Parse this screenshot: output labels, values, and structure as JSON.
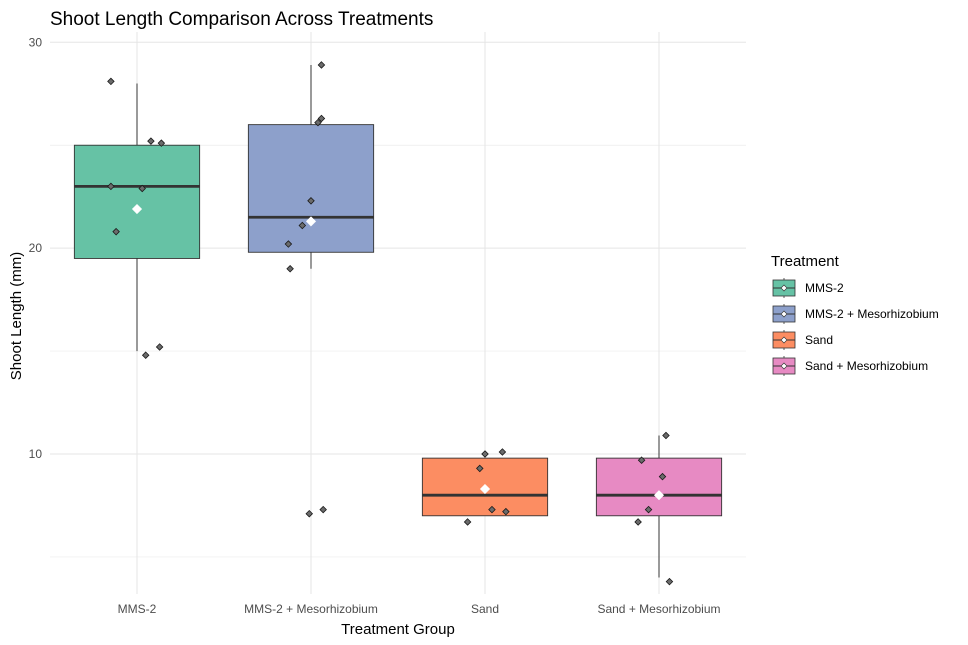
{
  "chart_data": {
    "type": "boxplot",
    "title": "Shoot Length Comparison Across Treatments",
    "xlabel": "Treatment Group",
    "ylabel": "Shoot Length (mm)",
    "ylim": [
      3.2,
      30.5
    ],
    "yticks": [
      10,
      20,
      30
    ],
    "grid": true,
    "legend": {
      "title": "Treatment",
      "placement": "right"
    },
    "categories": [
      "MMS-2",
      "MMS-2 + Mesorhizobium",
      "Sand",
      "Sand + Mesorhizobium"
    ],
    "colors": [
      "#66c2a5",
      "#8da0cb",
      "#fc8d62",
      "#e78ac3"
    ],
    "boxes": [
      {
        "category": "MMS-2",
        "whisker_low": 15.0,
        "q1": 19.5,
        "median": 23.0,
        "q3": 25.0,
        "whisker_high": 28.0,
        "mean": 21.9
      },
      {
        "category": "MMS-2 + Mesorhizobium",
        "whisker_low": 19.0,
        "q1": 19.8,
        "median": 21.5,
        "q3": 26.0,
        "whisker_high": 28.9,
        "mean": 21.3
      },
      {
        "category": "Sand",
        "whisker_low": 7.0,
        "q1": 7.0,
        "median": 8.0,
        "q3": 9.8,
        "whisker_high": 9.8,
        "mean": 8.3
      },
      {
        "category": "Sand + Mesorhizobium",
        "whisker_low": 4.0,
        "q1": 7.0,
        "median": 8.0,
        "q3": 9.8,
        "whisker_high": 10.9,
        "mean": 8.0
      }
    ],
    "points": [
      {
        "category": "MMS-2",
        "values": [
          28.1,
          25.2,
          25.1,
          23.0,
          22.9,
          20.8,
          15.2,
          14.8
        ],
        "jitter": [
          -0.15,
          0.08,
          0.14,
          -0.15,
          0.03,
          -0.12,
          0.13,
          0.05
        ]
      },
      {
        "category": "MMS-2 + Mesorhizobium",
        "values": [
          28.9,
          26.3,
          26.1,
          22.3,
          21.1,
          20.2,
          19.0,
          7.3,
          7.1
        ],
        "jitter": [
          0.06,
          0.06,
          0.04,
          0.0,
          -0.05,
          -0.13,
          -0.12,
          0.07,
          -0.01
        ]
      },
      {
        "category": "Sand",
        "values": [
          10.1,
          10.0,
          9.3,
          7.3,
          7.2,
          6.7
        ],
        "jitter": [
          0.1,
          0.0,
          -0.03,
          0.04,
          0.12,
          -0.1
        ]
      },
      {
        "category": "Sand + Mesorhizobium",
        "values": [
          10.9,
          9.7,
          8.9,
          7.3,
          6.7,
          3.8
        ],
        "jitter": [
          0.04,
          -0.1,
          0.02,
          -0.06,
          -0.12,
          0.06
        ]
      }
    ]
  }
}
